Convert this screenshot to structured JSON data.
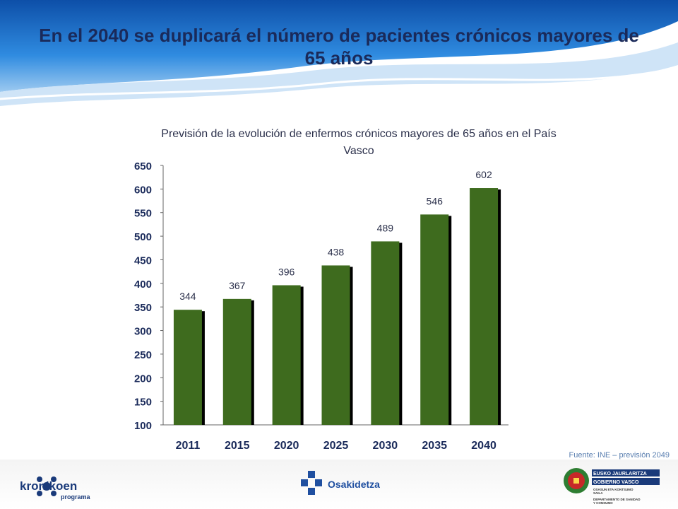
{
  "slide": {
    "title": "En el 2040 se duplicará el número de pacientes crónicos mayores de 65 años",
    "source": "Fuente: INE – previsión 2049"
  },
  "colors": {
    "bar": "#3e6b1e",
    "bar_shadow": "#000000",
    "title": "#1a2a5a",
    "header_blue": "#1e73c8",
    "accent": "#5a7fb0"
  },
  "chart_data": {
    "type": "bar",
    "title": "Previsión de la evolución de enfermos crónicos mayores de 65 años en el País Vasco",
    "categories": [
      "2011",
      "2015",
      "2020",
      "2025",
      "2030",
      "2035",
      "2040"
    ],
    "values": [
      344,
      367,
      396,
      438,
      489,
      546,
      602
    ],
    "ylim": [
      100,
      650
    ],
    "yticks": [
      100,
      150,
      200,
      250,
      300,
      350,
      400,
      450,
      500,
      550,
      600,
      650
    ],
    "xlabel": "",
    "ylabel": "",
    "grid": false,
    "legend": "none"
  },
  "footer": {
    "kronikoen": {
      "word": "kronikoen",
      "sub": "programa",
      "icon": "kronikoen-logo-icon"
    },
    "osakidetza": {
      "word": "Osakidetza",
      "icon": "medical-cross-icon"
    },
    "government": {
      "line1": "EUSKO JAURLARITZA",
      "line2": "GOBIERNO VASCO",
      "line3": "OSASUN ETA KONTSUMO",
      "line4": "SAILA",
      "line5": "DEPARTAMENTO DE SANIDAD",
      "line6": "Y CONSUMO",
      "icon": "basque-coat-of-arms-icon"
    }
  }
}
